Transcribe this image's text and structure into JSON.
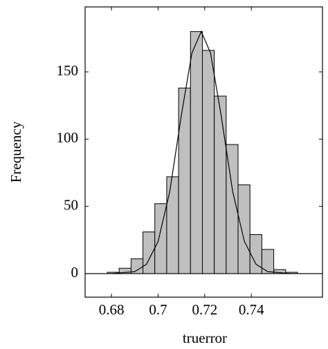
{
  "chart_data": {
    "type": "histogram",
    "x_label": "truerror",
    "y_label": "Frequency",
    "bins": [
      0.6782,
      0.6833,
      0.6884,
      0.6935,
      0.6986,
      0.7037,
      0.7088,
      0.7139,
      0.719,
      0.7241,
      0.7292,
      0.7343,
      0.7394,
      0.7445,
      0.7496,
      0.7547,
      0.7598
    ],
    "values": [
      1,
      4,
      11,
      31,
      52,
      72,
      138,
      180,
      166,
      132,
      96,
      66,
      29,
      18,
      3,
      1
    ],
    "color": "#bfbfbf",
    "curve": {
      "x": [
        0.669,
        0.68,
        0.69,
        0.695,
        0.7,
        0.705,
        0.71,
        0.7145,
        0.7185,
        0.7225,
        0.727,
        0.732,
        0.737,
        0.742,
        0.747,
        0.757,
        0.77
      ],
      "y": [
        0,
        0,
        1.5,
        6.9,
        23.9,
        61,
        118,
        164,
        180,
        164,
        118,
        61,
        24,
        7,
        1.5,
        0,
        0
      ]
    },
    "xlim": [
      0.6687,
      0.7705
    ],
    "ylim": [
      -17.5,
      198.3
    ],
    "xticks": [
      0.68,
      0.7,
      0.72,
      0.74
    ],
    "yticks": [
      0,
      50,
      100,
      150
    ]
  }
}
